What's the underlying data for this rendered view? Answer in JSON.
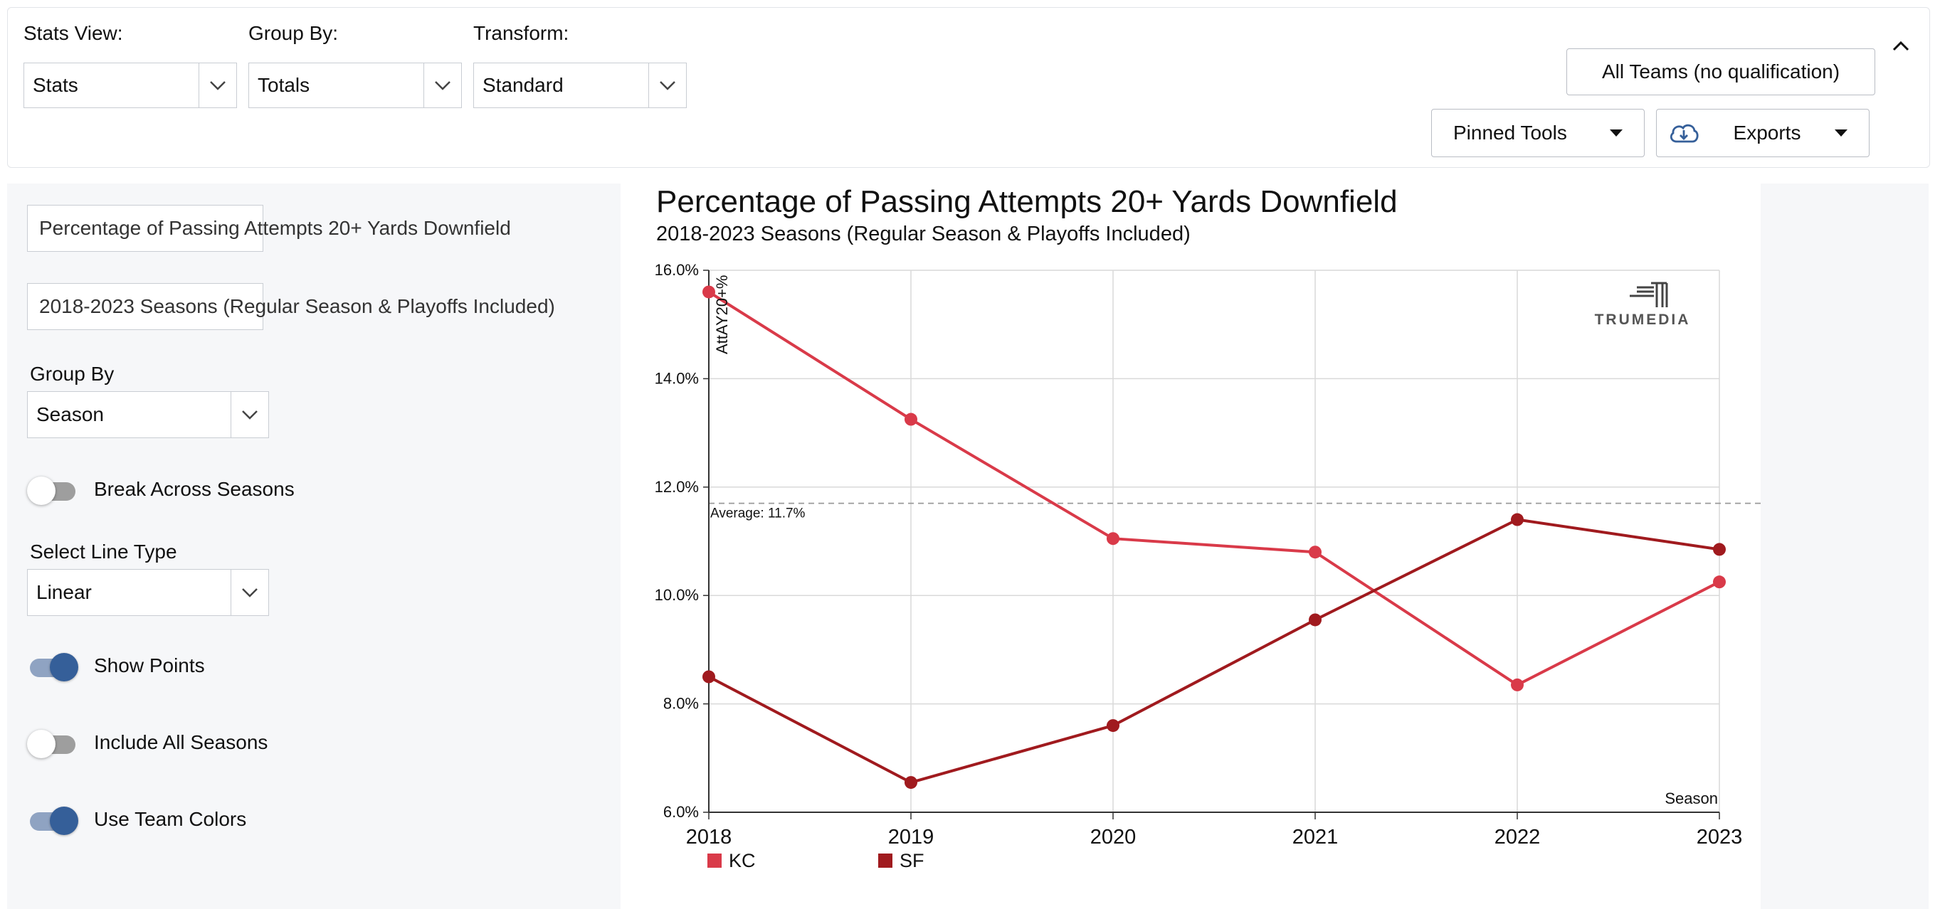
{
  "topbar": {
    "stats_view": {
      "label": "Stats View:",
      "value": "Stats"
    },
    "group_by": {
      "label": "Group By:",
      "value": "Totals"
    },
    "transform": {
      "label": "Transform:",
      "value": "Standard"
    },
    "all_teams_button": "All Teams (no qualification)",
    "pinned_tools_button": "Pinned Tools",
    "exports_button": "Exports"
  },
  "sidebar": {
    "title_input": "Percentage of Passing Attempts 20+ Yards Downfield",
    "subtitle_input": "2018-2023 Seasons (Regular Season & Playoffs Included)",
    "group_by": {
      "label": "Group By",
      "value": "Season"
    },
    "break_across_seasons": {
      "label": "Break Across Seasons",
      "on": false
    },
    "line_type": {
      "label": "Select Line Type",
      "value": "Linear"
    },
    "show_points": {
      "label": "Show Points",
      "on": true
    },
    "include_all_seasons": {
      "label": "Include All Seasons",
      "on": false
    },
    "use_team_colors": {
      "label": "Use Team Colors",
      "on": true
    }
  },
  "chart_data": {
    "type": "line",
    "title": "Percentage of Passing Attempts 20+ Yards Downfield",
    "subtitle": "2018-2023 Seasons (Regular Season & Playoffs Included)",
    "xlabel": "Season",
    "ylabel": "AttAY20+%",
    "x": [
      2018,
      2019,
      2020,
      2021,
      2022,
      2023
    ],
    "ylim": [
      6.0,
      16.0
    ],
    "yticks": [
      "6.0%",
      "8.0%",
      "10.0%",
      "12.0%",
      "14.0%",
      "16.0%"
    ],
    "xticks": [
      "2018",
      "2019",
      "2020",
      "2021",
      "2022",
      "2023"
    ],
    "grid": true,
    "average": {
      "value": 11.7,
      "label": "Average: 11.7%"
    },
    "watermark": "TRUMEDIA",
    "series": [
      {
        "name": "KC",
        "color": "#d93a49",
        "values": [
          15.6,
          13.25,
          11.05,
          10.8,
          8.35,
          10.25
        ]
      },
      {
        "name": "SF",
        "color": "#a01a1e",
        "values": [
          8.5,
          6.55,
          7.6,
          9.55,
          11.4,
          10.85
        ]
      }
    ]
  }
}
